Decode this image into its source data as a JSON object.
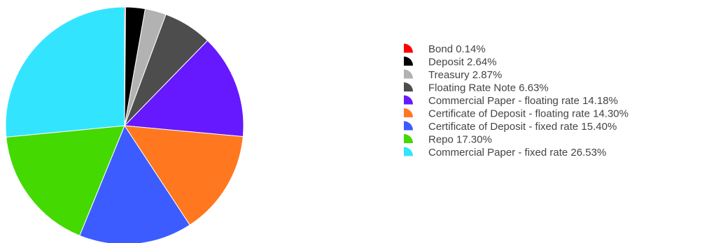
{
  "chart_data": {
    "type": "pie",
    "start_angle_deg": 0,
    "direction": "clockwise",
    "legend_placement": "right",
    "slices": [
      {
        "label": "Bond 0.14%",
        "category": "Bond",
        "value": 0.14,
        "color": "#ff0000"
      },
      {
        "label": "Deposit 2.64%",
        "category": "Deposit",
        "value": 2.64,
        "color": "#000000"
      },
      {
        "label": "Treasury 2.87%",
        "category": "Treasury",
        "value": 2.87,
        "color": "#b2b2b2"
      },
      {
        "label": "Floating Rate Note 6.63%",
        "category": "Floating Rate Note",
        "value": 6.63,
        "color": "#4d4d4d"
      },
      {
        "label": "Commercial Paper - floating rate 14.18%",
        "category": "Commercial Paper - floating rate",
        "value": 14.18,
        "color": "#6619ff"
      },
      {
        "label": "Certificate of Deposit - floating rate 14.30%",
        "category": "Certificate of Deposit - floating rate",
        "value": 14.3,
        "color": "#ff781f"
      },
      {
        "label": "Certificate of Deposit - fixed rate 15.40%",
        "category": "Certificate of Deposit - fixed rate",
        "value": 15.4,
        "color": "#3c5cff"
      },
      {
        "label": "Repo 17.30%",
        "category": "Repo",
        "value": 17.3,
        "color": "#44d900"
      },
      {
        "label": "Commercial Paper - fixed rate 26.53%",
        "category": "Commercial Paper - fixed rate",
        "value": 26.53,
        "color": "#33e4ff"
      }
    ]
  }
}
